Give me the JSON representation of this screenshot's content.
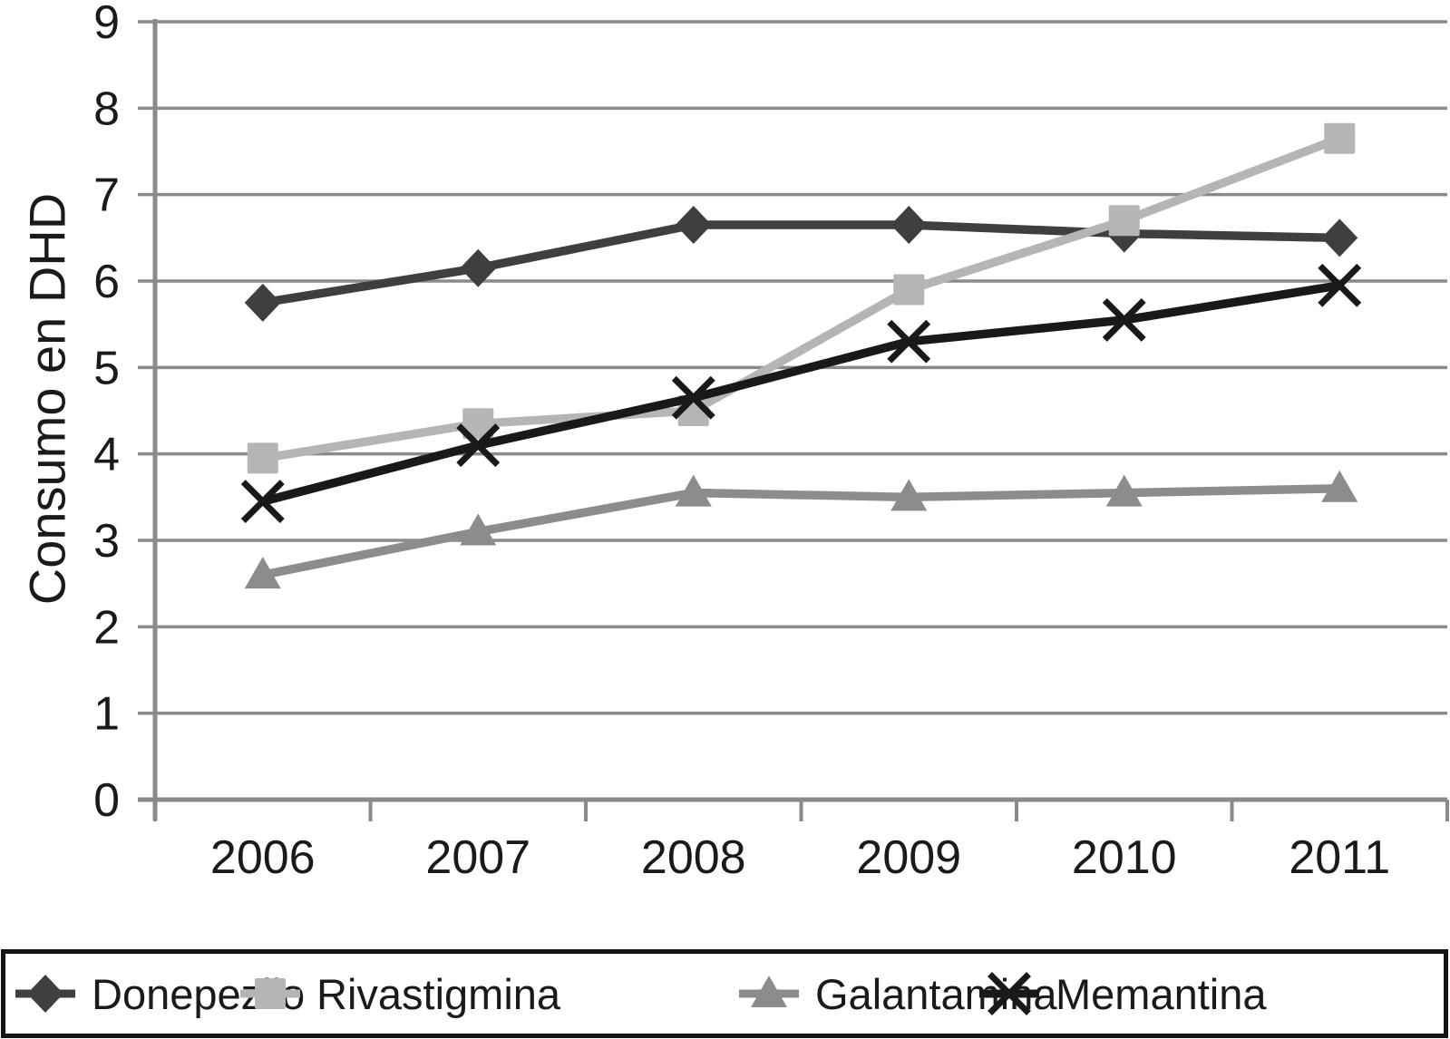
{
  "chart_data": {
    "type": "line",
    "title": "",
    "xlabel": "",
    "ylabel": "Consumo en DHD",
    "ylim": [
      0,
      9
    ],
    "ytick_step": 1,
    "grid": true,
    "legend_position": "bottom",
    "axis_color": "#8a8a8a",
    "text_color": "#1a1a1a",
    "categories": [
      "2006",
      "2007",
      "2008",
      "2009",
      "2010",
      "2011"
    ],
    "series": [
      {
        "name": "Donepezilo",
        "marker": "diamond",
        "color": "#3f3f3f",
        "values": [
          5.75,
          6.15,
          6.65,
          6.65,
          6.55,
          6.5
        ]
      },
      {
        "name": "Rivastigmina",
        "marker": "square",
        "color": "#b5b5b5",
        "values": [
          3.95,
          4.35,
          4.5,
          5.9,
          6.7,
          7.65
        ]
      },
      {
        "name": "Galantamina",
        "marker": "triangle",
        "color": "#8c8c8c",
        "values": [
          2.6,
          3.1,
          3.55,
          3.5,
          3.55,
          3.6
        ]
      },
      {
        "name": "Memantina",
        "marker": "x",
        "color": "#191919",
        "values": [
          3.45,
          4.1,
          4.65,
          5.3,
          5.55,
          5.95
        ]
      }
    ]
  }
}
